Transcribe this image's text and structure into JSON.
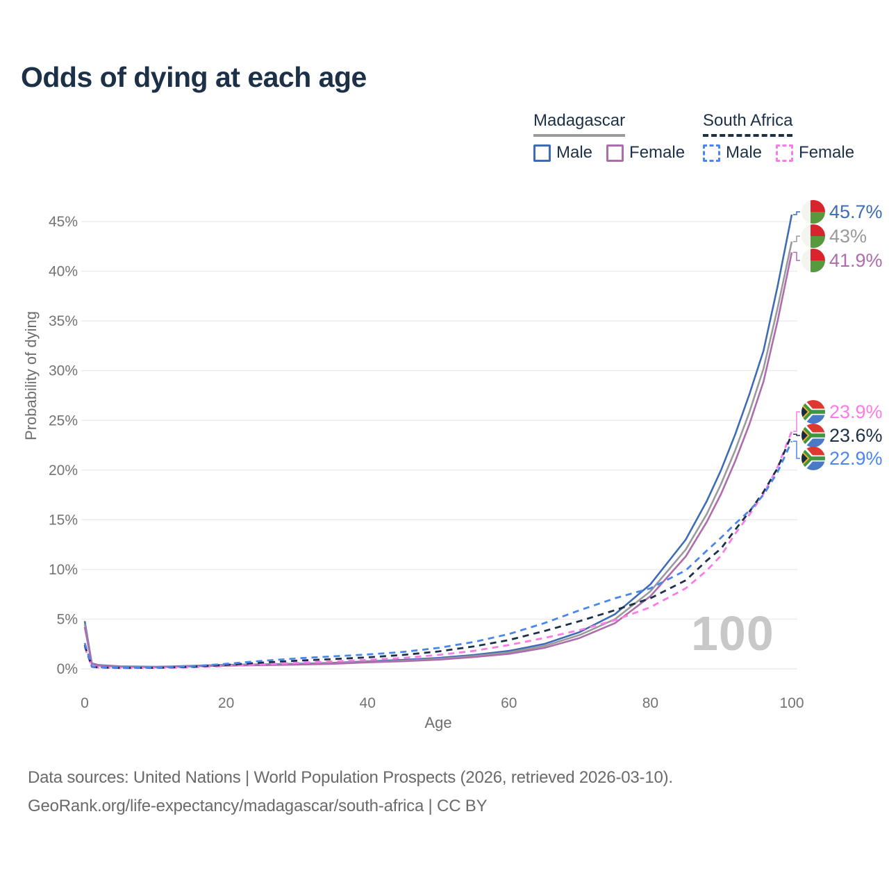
{
  "title": "Odds of dying at each age",
  "legend": {
    "groups": [
      {
        "label": "Madagascar",
        "line_style": "solid",
        "underline_color": "#9a9a9a",
        "items": [
          {
            "label": "Male",
            "color": "#3e6cb4"
          },
          {
            "label": "Female",
            "color": "#ae6cae"
          }
        ]
      },
      {
        "label": "South Africa",
        "line_style": "dashed",
        "underline_color": "#1c3048",
        "items": [
          {
            "label": "Male",
            "color": "#4a86ee"
          },
          {
            "label": "Female",
            "color": "#fb7be7"
          }
        ]
      }
    ]
  },
  "chart_data": {
    "type": "line",
    "title": "Odds of dying at each age",
    "xlabel": "Age",
    "ylabel": "Probability of dying",
    "x_ticks": [
      0,
      20,
      40,
      60,
      80,
      100
    ],
    "y_ticks": [
      0,
      5,
      10,
      15,
      20,
      25,
      30,
      35,
      40,
      45
    ],
    "y_tick_suffix": "%",
    "xlim": [
      0,
      100
    ],
    "ylim": [
      0,
      46
    ],
    "grid": "horizontal",
    "watermark": "100",
    "ages": [
      0,
      1,
      2,
      5,
      10,
      15,
      20,
      25,
      30,
      35,
      40,
      45,
      50,
      55,
      60,
      65,
      70,
      75,
      80,
      85,
      88,
      90,
      92,
      94,
      96,
      98,
      100
    ],
    "series": [
      {
        "id": "madagascar-male",
        "name": "Madagascar Male",
        "color": "#3e6cb4",
        "dash": null,
        "flag": "madagascar",
        "end_label": "45.7%",
        "values": [
          4.8,
          0.55,
          0.38,
          0.25,
          0.2,
          0.3,
          0.4,
          0.45,
          0.5,
          0.6,
          0.75,
          0.9,
          1.1,
          1.4,
          1.8,
          2.5,
          3.7,
          5.5,
          8.5,
          13.0,
          16.9,
          20.0,
          23.6,
          27.6,
          32.0,
          38.5,
          45.7
        ]
      },
      {
        "id": "madagascar-both",
        "name": "Madagascar Both sexes",
        "color": "#9a9a9a",
        "dash": null,
        "flag": "madagascar",
        "end_label": "43%",
        "values": [
          4.5,
          0.52,
          0.35,
          0.22,
          0.18,
          0.27,
          0.36,
          0.41,
          0.46,
          0.55,
          0.7,
          0.82,
          1.0,
          1.28,
          1.65,
          2.3,
          3.4,
          5.0,
          7.8,
          12.0,
          15.6,
          18.6,
          22.0,
          25.8,
          30.2,
          36.3,
          43.0
        ]
      },
      {
        "id": "madagascar-female",
        "name": "Madagascar Female",
        "color": "#ae6cae",
        "dash": null,
        "flag": "madagascar",
        "end_label": "41.9%",
        "values": [
          4.2,
          0.5,
          0.33,
          0.2,
          0.17,
          0.25,
          0.32,
          0.37,
          0.42,
          0.5,
          0.65,
          0.76,
          0.92,
          1.18,
          1.5,
          2.1,
          3.1,
          4.6,
          7.3,
          11.3,
          14.8,
          17.6,
          20.9,
          24.6,
          28.9,
          35.0,
          41.9
        ]
      },
      {
        "id": "south-africa-female",
        "name": "South Africa Female",
        "color": "#fb7be7",
        "dash": "9 7",
        "flag": "south-africa",
        "end_label": "23.9%",
        "values": [
          2.2,
          0.2,
          0.12,
          0.08,
          0.09,
          0.15,
          0.28,
          0.45,
          0.6,
          0.75,
          0.9,
          1.1,
          1.4,
          1.8,
          2.4,
          3.1,
          3.9,
          4.9,
          6.2,
          8.1,
          9.9,
          11.4,
          13.6,
          15.5,
          17.6,
          20.3,
          23.9
        ]
      },
      {
        "id": "south-africa-both",
        "name": "South Africa Both sexes",
        "color": "#1c3048",
        "dash": "9 7",
        "flag": "south-africa",
        "end_label": "23.6%",
        "values": [
          2.4,
          0.22,
          0.14,
          0.09,
          0.1,
          0.2,
          0.4,
          0.62,
          0.82,
          0.98,
          1.15,
          1.4,
          1.75,
          2.25,
          2.9,
          3.8,
          4.8,
          5.9,
          7.1,
          8.9,
          10.9,
          12.1,
          14.0,
          15.8,
          17.8,
          20.2,
          23.6
        ]
      },
      {
        "id": "south-africa-male",
        "name": "South Africa Male",
        "color": "#4a86ee",
        "dash": "9 7",
        "flag": "south-africa",
        "end_label": "22.9%",
        "values": [
          2.6,
          0.25,
          0.16,
          0.1,
          0.12,
          0.25,
          0.5,
          0.8,
          1.05,
          1.25,
          1.45,
          1.7,
          2.1,
          2.7,
          3.5,
          4.6,
          5.9,
          7.1,
          8.1,
          9.9,
          11.9,
          13.2,
          14.6,
          15.9,
          17.5,
          19.8,
          22.9
        ]
      }
    ]
  },
  "footer": {
    "line1": "Data sources: United Nations | World Population Prospects (2026, retrieved 2026-03-10).",
    "line2": "GeoRank.org/life-expectancy/madagascar/south-africa | CC BY"
  }
}
